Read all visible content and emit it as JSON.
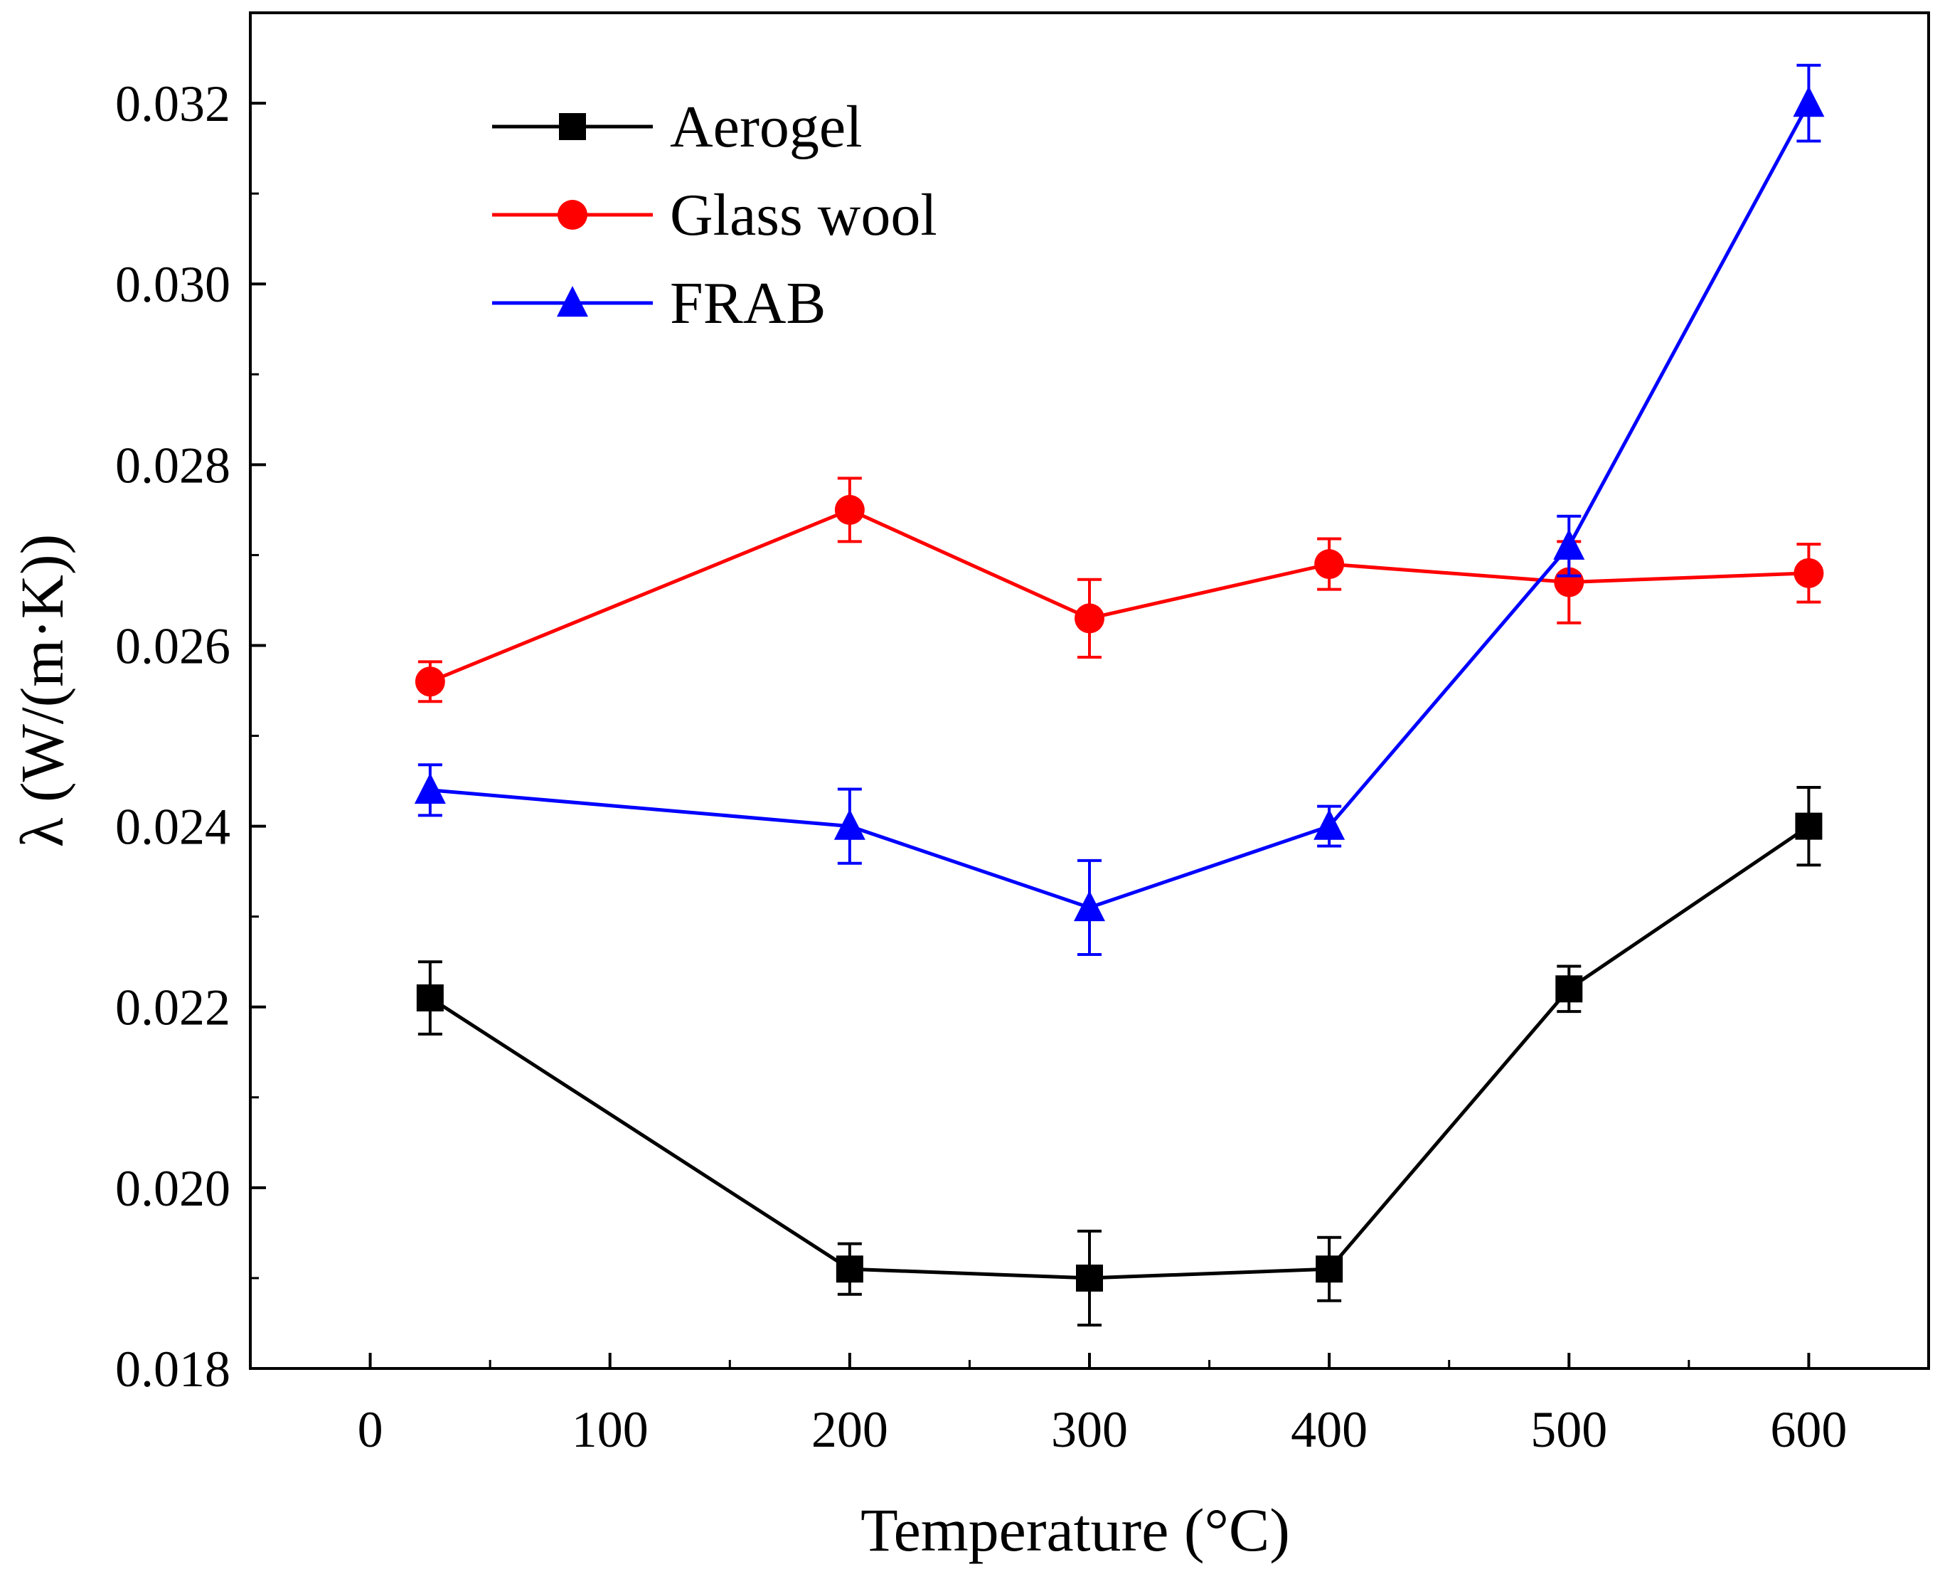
{
  "chart_data": {
    "type": "line",
    "title": "",
    "xlabel": "Temperature (°C)",
    "ylabel": "λ (W/(m·K))",
    "xlim": [
      -50,
      650
    ],
    "ylim": [
      0.018,
      0.033
    ],
    "x_ticks": [
      0,
      100,
      200,
      300,
      400,
      500,
      600
    ],
    "x_tick_labels": [
      "0",
      "100",
      "200",
      "300",
      "400",
      "500",
      "600"
    ],
    "y_ticks": [
      0.018,
      0.02,
      0.022,
      0.024,
      0.026,
      0.028,
      0.03,
      0.032
    ],
    "y_tick_labels": [
      "0.018",
      "0.020",
      "0.022",
      "0.024",
      "0.026",
      "0.028",
      "0.030",
      "0.032"
    ],
    "grid": false,
    "legend_position": "top-left",
    "series": [
      {
        "name": "Aerogel",
        "color": "#000000",
        "marker": "square",
        "x": [
          25,
          200,
          300,
          400,
          500,
          600
        ],
        "y": [
          0.0221,
          0.0191,
          0.019,
          0.0191,
          0.0222,
          0.024
        ],
        "err": [
          0.0004,
          0.00028,
          0.00052,
          0.00035,
          0.00025,
          0.00043
        ]
      },
      {
        "name": "Glass wool",
        "color": "#ff0000",
        "marker": "circle",
        "x": [
          25,
          200,
          300,
          400,
          500,
          600
        ],
        "y": [
          0.0256,
          0.0275,
          0.0263,
          0.0269,
          0.0267,
          0.0268
        ],
        "err": [
          0.00022,
          0.00035,
          0.00043,
          0.00028,
          0.00045,
          0.00032
        ]
      },
      {
        "name": "FRAB",
        "color": "#0000ff",
        "marker": "triangle",
        "x": [
          25,
          200,
          300,
          400,
          500,
          600
        ],
        "y": [
          0.0244,
          0.024,
          0.0231,
          0.024,
          0.0271,
          0.032
        ],
        "err": [
          0.00028,
          0.00041,
          0.00052,
          0.00022,
          0.00033,
          0.00042
        ]
      }
    ]
  }
}
